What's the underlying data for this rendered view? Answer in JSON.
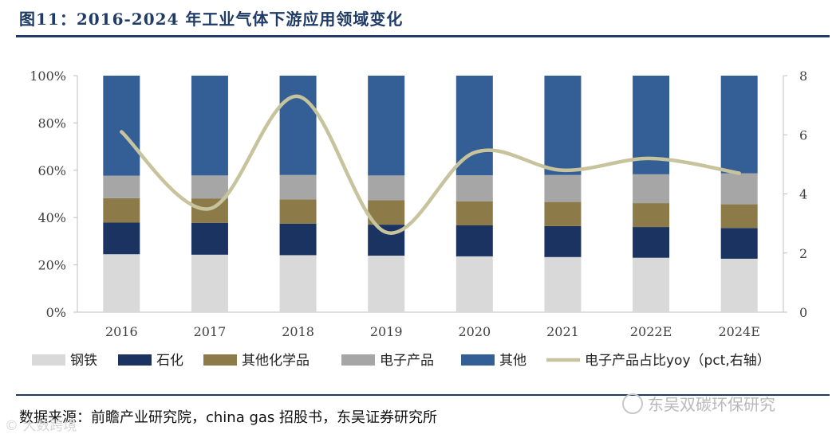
{
  "title": "图11：2016-2024 年工业气体下游应用领域变化",
  "source": "数据来源：前瞻产业研究院，china gas 招股书，东吴证券研究所",
  "watermark": "东吴双碳环保研究",
  "watermark2": "© 大数跨境",
  "chart_data": {
    "type": "bar",
    "stacked": true,
    "categories": [
      "2016",
      "2017",
      "2018",
      "2019",
      "2020",
      "2021",
      "2022E",
      "2024E"
    ],
    "left_axis": {
      "min": 0,
      "max": 100,
      "ticks": [
        "0%",
        "20%",
        "40%",
        "60%",
        "80%",
        "100%"
      ]
    },
    "right_axis": {
      "min": 0,
      "max": 8,
      "ticks": [
        "0",
        "2",
        "4",
        "6",
        "8"
      ]
    },
    "series": [
      {
        "name": "钢铁",
        "color": "#d9d9d9",
        "values": [
          24.5,
          24.3,
          24.1,
          23.9,
          23.6,
          23.3,
          23.0,
          22.6
        ]
      },
      {
        "name": "石化",
        "color": "#1b3360",
        "values": [
          13.4,
          13.5,
          13.3,
          13.1,
          13.1,
          13.1,
          13.0,
          13.0
        ]
      },
      {
        "name": "其他化学品",
        "color": "#8c7a48",
        "values": [
          10.3,
          10.3,
          10.3,
          10.3,
          10.2,
          10.2,
          10.1,
          10.0
        ]
      },
      {
        "name": "电子产品",
        "color": "#a6a6a6",
        "values": [
          9.5,
          9.7,
          10.3,
          10.5,
          11.0,
          11.4,
          12.2,
          13.1
        ]
      },
      {
        "name": "其他",
        "color": "#345f96",
        "values": [
          42.3,
          42.2,
          42.0,
          42.2,
          42.1,
          42.0,
          41.7,
          41.3
        ]
      }
    ],
    "line": {
      "name": "电子产品占比yoy（pct,右轴）",
      "color": "#c7c39d",
      "axis": "right",
      "values": [
        6.1,
        3.5,
        7.3,
        2.7,
        5.4,
        4.8,
        5.2,
        4.7
      ]
    },
    "legend_position": "bottom"
  }
}
